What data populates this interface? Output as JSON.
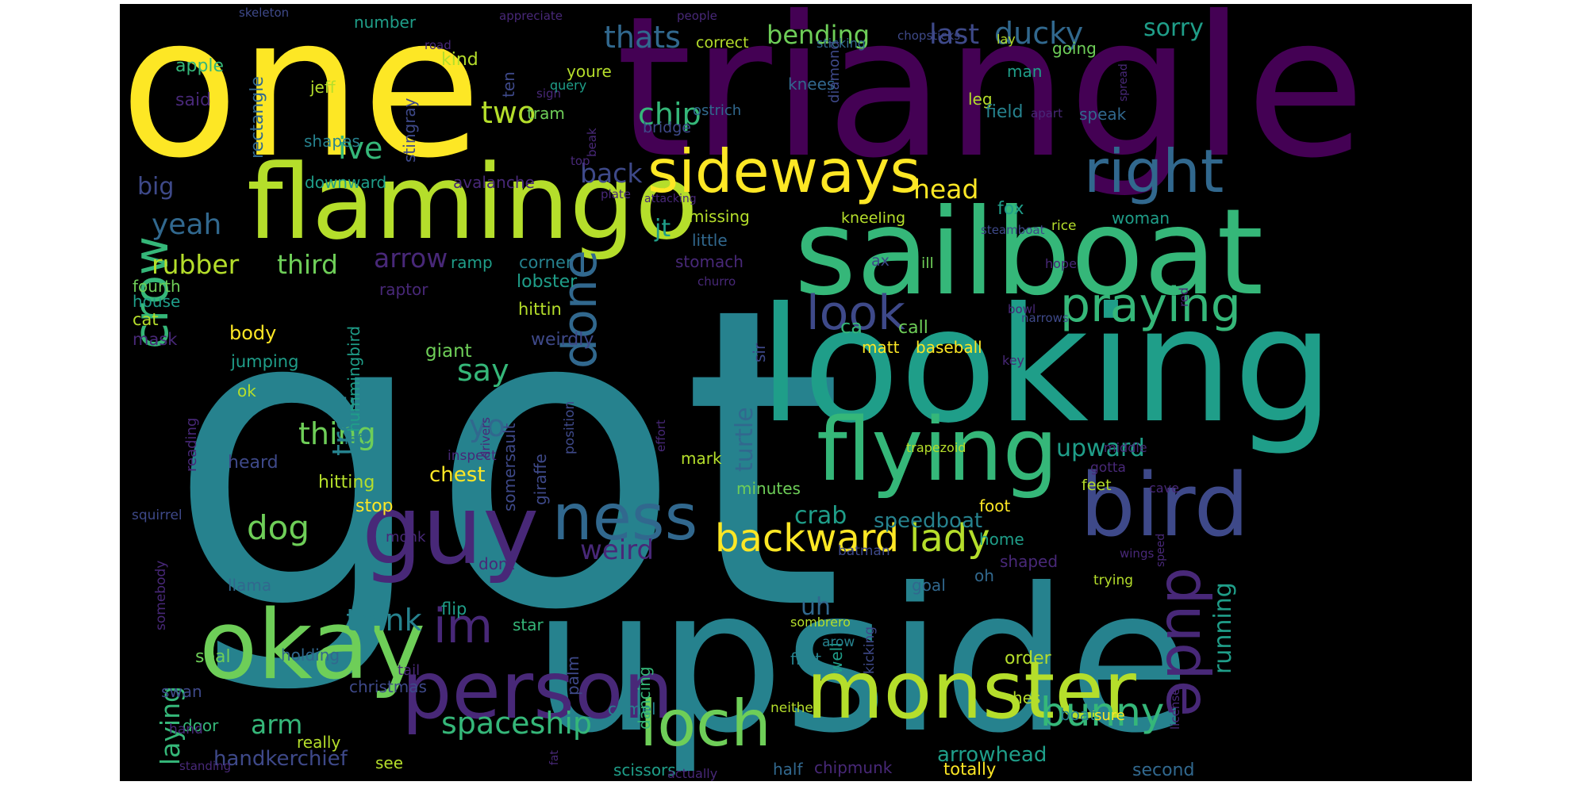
{
  "background": "#000000",
  "palette": {
    "yellow": "#fde725",
    "lime": "#b5de2b",
    "green": "#6ece58",
    "teal": "#35b779",
    "cyan": "#1f9e89",
    "blue": "#26828e",
    "steel": "#31688e",
    "indigo": "#3e4989",
    "violet": "#482878",
    "purple": "#440154"
  },
  "words": [
    {
      "text": "got",
      "color": "blue"
    },
    {
      "text": "triangle",
      "color": "purple"
    },
    {
      "text": "one",
      "color": "yellow"
    },
    {
      "text": "upside",
      "color": "blue"
    },
    {
      "text": "looking",
      "color": "cyan"
    },
    {
      "text": "sailboat",
      "color": "teal"
    },
    {
      "text": "flamingo",
      "color": "lime"
    },
    {
      "text": "guy",
      "color": "violet"
    },
    {
      "text": "okay",
      "color": "green"
    },
    {
      "text": "bird",
      "color": "indigo"
    },
    {
      "text": "flying",
      "color": "teal"
    },
    {
      "text": "person",
      "color": "violet"
    },
    {
      "text": "monster",
      "color": "lime"
    },
    {
      "text": "sideways",
      "color": "yellow"
    },
    {
      "text": "right",
      "color": "steel"
    },
    {
      "text": "dude",
      "color": "violet"
    },
    {
      "text": "ness",
      "color": "steel"
    },
    {
      "text": "loch",
      "color": "green"
    },
    {
      "text": "crow",
      "color": "teal"
    },
    {
      "text": "done",
      "color": "steel"
    },
    {
      "text": "im",
      "color": "violet"
    },
    {
      "text": "look",
      "color": "indigo"
    },
    {
      "text": "praying",
      "color": "teal"
    },
    {
      "text": "backward",
      "color": "yellow"
    },
    {
      "text": "lady",
      "color": "lime"
    },
    {
      "text": "bunny",
      "color": "teal"
    },
    {
      "text": "spaceship",
      "color": "teal"
    },
    {
      "text": "thats",
      "color": "steel"
    },
    {
      "text": "bending",
      "color": "green"
    },
    {
      "text": "last",
      "color": "indigo"
    },
    {
      "text": "ducky",
      "color": "steel"
    },
    {
      "text": "sorry",
      "color": "cyan"
    },
    {
      "text": "two",
      "color": "lime"
    },
    {
      "text": "chip",
      "color": "teal"
    },
    {
      "text": "yeah",
      "color": "steel"
    },
    {
      "text": "rubber",
      "color": "lime"
    },
    {
      "text": "third",
      "color": "green"
    },
    {
      "text": "arrow",
      "color": "violet"
    },
    {
      "text": "head",
      "color": "yellow"
    },
    {
      "text": "say",
      "color": "teal"
    },
    {
      "text": "thing",
      "color": "green"
    },
    {
      "text": "dog",
      "color": "green"
    },
    {
      "text": "think",
      "color": "blue"
    },
    {
      "text": "arm",
      "color": "teal"
    },
    {
      "text": "weird",
      "color": "violet"
    },
    {
      "text": "crab",
      "color": "cyan"
    },
    {
      "text": "turtle",
      "color": "steel"
    },
    {
      "text": "tree",
      "color": "blue"
    },
    {
      "text": "running",
      "color": "cyan"
    },
    {
      "text": "upward",
      "color": "cyan"
    },
    {
      "text": "yo",
      "color": "steel"
    },
    {
      "text": "ive",
      "color": "teal"
    },
    {
      "text": "back",
      "color": "indigo"
    },
    {
      "text": "jt",
      "color": "cyan"
    },
    {
      "text": "big",
      "color": "indigo"
    },
    {
      "text": "laying",
      "color": "teal"
    },
    {
      "text": "uh",
      "color": "steel"
    },
    {
      "text": "handkerchief",
      "color": "indigo"
    },
    {
      "text": "speedboat",
      "color": "blue"
    },
    {
      "text": "arrowhead",
      "color": "cyan"
    },
    {
      "text": "chest",
      "color": "yellow"
    },
    {
      "text": "giant",
      "color": "green"
    },
    {
      "text": "body",
      "color": "yellow"
    },
    {
      "text": "heard",
      "color": "indigo"
    },
    {
      "text": "stop",
      "color": "yellow"
    },
    {
      "text": "hitting",
      "color": "lime"
    },
    {
      "text": "house",
      "color": "cyan"
    },
    {
      "text": "fourth",
      "color": "green"
    },
    {
      "text": "cat",
      "color": "lime"
    },
    {
      "text": "mask",
      "color": "violet"
    },
    {
      "text": "jumping",
      "color": "cyan"
    },
    {
      "text": "ok",
      "color": "lime"
    },
    {
      "text": "apple",
      "color": "teal"
    },
    {
      "text": "said",
      "color": "violet"
    },
    {
      "text": "rectangle",
      "color": "steel"
    },
    {
      "text": "shapes",
      "color": "blue"
    },
    {
      "text": "jeff",
      "color": "lime"
    },
    {
      "text": "number",
      "color": "cyan"
    },
    {
      "text": "kind",
      "color": "lime"
    },
    {
      "text": "stingray",
      "color": "indigo"
    },
    {
      "text": "downward",
      "color": "cyan"
    },
    {
      "text": "avalanche",
      "color": "violet"
    },
    {
      "text": "lobster",
      "color": "cyan"
    },
    {
      "text": "hittin",
      "color": "lime"
    },
    {
      "text": "weirdly",
      "color": "indigo"
    },
    {
      "text": "ramp",
      "color": "cyan"
    },
    {
      "text": "corner",
      "color": "blue"
    },
    {
      "text": "raptor",
      "color": "violet"
    },
    {
      "text": "hummingbird",
      "color": "cyan"
    },
    {
      "text": "left",
      "color": "blue"
    },
    {
      "text": "reading",
      "color": "violet"
    },
    {
      "text": "squirrel",
      "color": "indigo"
    },
    {
      "text": "somebody",
      "color": "violet"
    },
    {
      "text": "llama",
      "color": "steel"
    },
    {
      "text": "door",
      "color": "teal"
    },
    {
      "text": "swan",
      "color": "indigo"
    },
    {
      "text": "hand",
      "color": "violet"
    },
    {
      "text": "standing",
      "color": "violet"
    },
    {
      "text": "seal",
      "color": "green"
    },
    {
      "text": "holding",
      "color": "steel"
    },
    {
      "text": "christmas",
      "color": "indigo"
    },
    {
      "text": "really",
      "color": "lime"
    },
    {
      "text": "see",
      "color": "lime"
    },
    {
      "text": "tail",
      "color": "violet"
    },
    {
      "text": "flip",
      "color": "cyan"
    },
    {
      "text": "star",
      "color": "teal"
    },
    {
      "text": "dont",
      "color": "violet"
    },
    {
      "text": "monk",
      "color": "violet"
    },
    {
      "text": "somersault",
      "color": "indigo"
    },
    {
      "text": "giraffe",
      "color": "indigo"
    },
    {
      "text": "inspect",
      "color": "violet"
    },
    {
      "text": "drivers",
      "color": "violet"
    },
    {
      "text": "position",
      "color": "indigo"
    },
    {
      "text": "palm",
      "color": "indigo"
    },
    {
      "text": "camel",
      "color": "blue"
    },
    {
      "text": "dancing",
      "color": "teal"
    },
    {
      "text": "scissors",
      "color": "cyan"
    },
    {
      "text": "actually",
      "color": "violet"
    },
    {
      "text": "fat",
      "color": "violet"
    },
    {
      "text": "chipmunk",
      "color": "violet"
    },
    {
      "text": "half",
      "color": "steel"
    },
    {
      "text": "totally",
      "color": "yellow"
    },
    {
      "text": "second",
      "color": "steel"
    },
    {
      "text": "boat",
      "color": "blue"
    },
    {
      "text": "sure",
      "color": "yellow"
    },
    {
      "text": "license",
      "color": "violet"
    },
    {
      "text": "hes",
      "color": "lime"
    },
    {
      "text": "order",
      "color": "lime"
    },
    {
      "text": "neither",
      "color": "lime"
    },
    {
      "text": "first",
      "color": "blue"
    },
    {
      "text": "well",
      "color": "cyan"
    },
    {
      "text": "kicking",
      "color": "indigo"
    },
    {
      "text": "sombrero",
      "color": "lime"
    },
    {
      "text": "arow",
      "color": "blue"
    },
    {
      "text": "goal",
      "color": "steel"
    },
    {
      "text": "oh",
      "color": "steel"
    },
    {
      "text": "shaped",
      "color": "violet"
    },
    {
      "text": "home",
      "color": "cyan"
    },
    {
      "text": "trying",
      "color": "lime"
    },
    {
      "text": "speed",
      "color": "violet"
    },
    {
      "text": "wings",
      "color": "violet"
    },
    {
      "text": "foot",
      "color": "yellow"
    },
    {
      "text": "batman",
      "color": "indigo"
    },
    {
      "text": "feet",
      "color": "lime"
    },
    {
      "text": "gotta",
      "color": "violet"
    },
    {
      "text": "cave",
      "color": "violet"
    },
    {
      "text": "middle",
      "color": "violet"
    },
    {
      "text": "trapezoid",
      "color": "lime"
    },
    {
      "text": "mark",
      "color": "lime"
    },
    {
      "text": "minutes",
      "color": "green"
    },
    {
      "text": "effort",
      "color": "violet"
    },
    {
      "text": "sir",
      "color": "indigo"
    },
    {
      "text": "matt",
      "color": "yellow"
    },
    {
      "text": "baseball",
      "color": "yellow"
    },
    {
      "text": "call",
      "color": "green"
    },
    {
      "text": "ca",
      "color": "teal"
    },
    {
      "text": "key",
      "color": "violet"
    },
    {
      "text": "narrows",
      "color": "indigo"
    },
    {
      "text": "bowl",
      "color": "violet"
    },
    {
      "text": "red",
      "color": "violet"
    },
    {
      "text": "hope",
      "color": "violet"
    },
    {
      "text": "ax",
      "color": "indigo"
    },
    {
      "text": "ill",
      "color": "green"
    },
    {
      "text": "woman",
      "color": "cyan"
    },
    {
      "text": "fox",
      "color": "cyan"
    },
    {
      "text": "kneeling",
      "color": "lime"
    },
    {
      "text": "steamboat",
      "color": "indigo"
    },
    {
      "text": "rice",
      "color": "lime"
    },
    {
      "text": "missing",
      "color": "lime"
    },
    {
      "text": "little",
      "color": "steel"
    },
    {
      "text": "stomach",
      "color": "violet"
    },
    {
      "text": "churro",
      "color": "violet"
    },
    {
      "text": "attacking",
      "color": "violet"
    },
    {
      "text": "plate",
      "color": "violet"
    },
    {
      "text": "top",
      "color": "violet"
    },
    {
      "text": "beak",
      "color": "violet"
    },
    {
      "text": "bridge",
      "color": "indigo"
    },
    {
      "text": "ostrich",
      "color": "steel"
    },
    {
      "text": "tram",
      "color": "green"
    },
    {
      "text": "ten",
      "color": "indigo"
    },
    {
      "text": "sign",
      "color": "violet"
    },
    {
      "text": "query",
      "color": "cyan"
    },
    {
      "text": "youre",
      "color": "lime"
    },
    {
      "text": "knees",
      "color": "steel"
    },
    {
      "text": "diamond",
      "color": "indigo"
    },
    {
      "text": "man",
      "color": "cyan"
    },
    {
      "text": "leg",
      "color": "lime"
    },
    {
      "text": "field",
      "color": "blue"
    },
    {
      "text": "speak",
      "color": "steel"
    },
    {
      "text": "apart",
      "color": "violet"
    },
    {
      "text": "spread",
      "color": "violet"
    },
    {
      "text": "going",
      "color": "green"
    },
    {
      "text": "lay",
      "color": "lime"
    },
    {
      "text": "sticking",
      "color": "steel"
    },
    {
      "text": "chopsticks",
      "color": "indigo"
    },
    {
      "text": "correct",
      "color": "lime"
    },
    {
      "text": "people",
      "color": "violet"
    },
    {
      "text": "appreciate",
      "color": "violet"
    },
    {
      "text": "road",
      "color": "violet"
    },
    {
      "text": "skeleton",
      "color": "indigo"
    }
  ]
}
